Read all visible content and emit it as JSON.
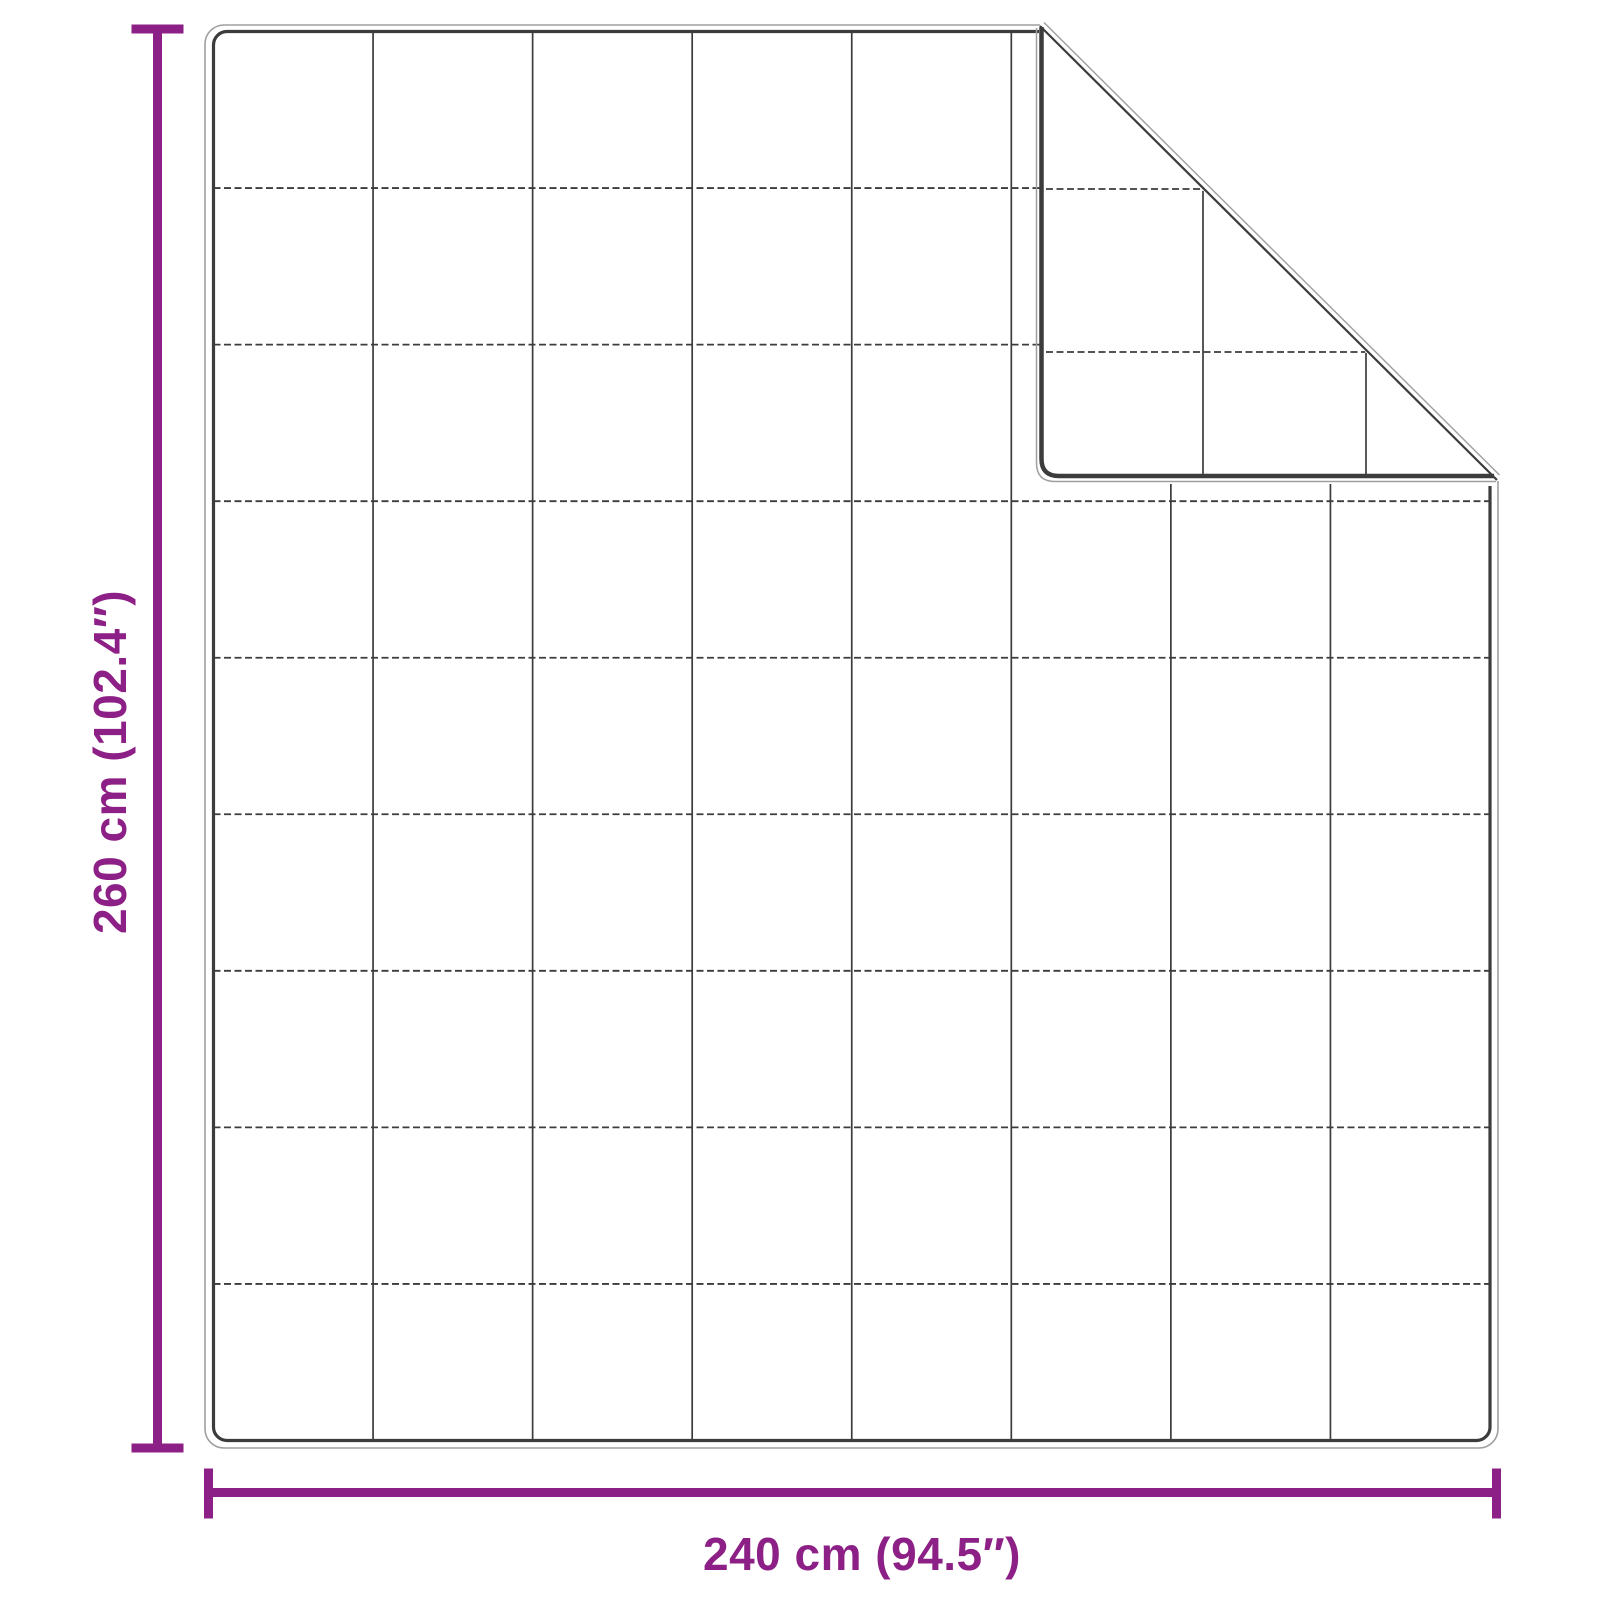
{
  "diagram": {
    "kind": "blanket-dimension-diagram",
    "background_color": "#ffffff",
    "accent_color": "#8d2086",
    "line_color": "#3c3c3c",
    "shadow_line_color": "#9f9f9f",
    "blanket": {
      "grid_columns": 8,
      "grid_rows": 9,
      "fold_position": "top-right",
      "flap_cell_size": 163
    },
    "dimensions": {
      "height_label": "260 cm (102.4″)",
      "width_label": "240 cm (94.5″)"
    }
  }
}
